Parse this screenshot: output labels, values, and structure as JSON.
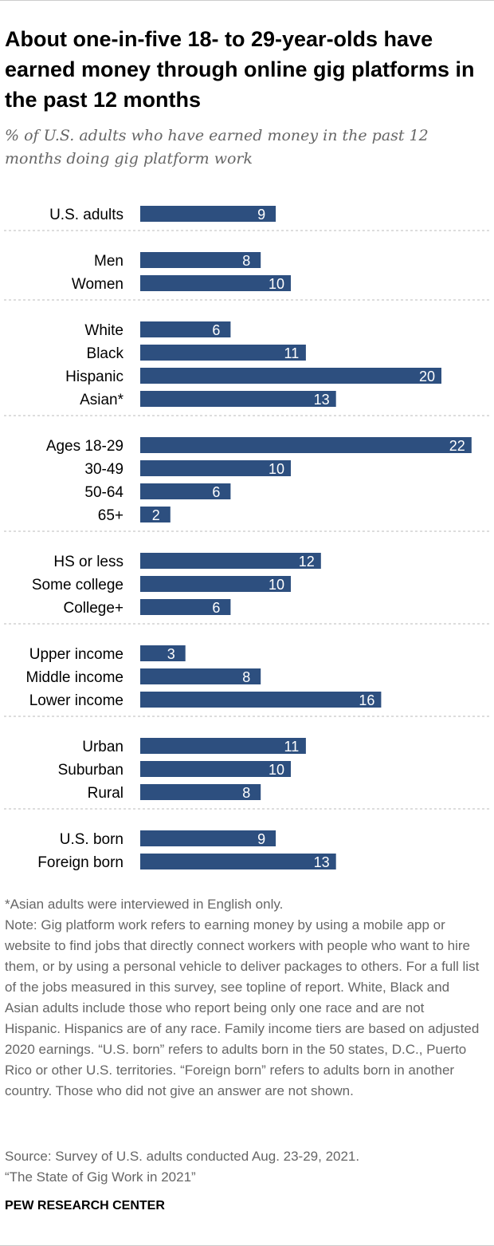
{
  "title": "About one-in-five 18- to 29-year-olds have earned money through online gig platforms in the past 12 months",
  "subtitle": "% of U.S. adults who have earned money in the past 12 months doing gig platform work",
  "colors": {
    "bar": "#2d4f7f",
    "divider": "#bbbbbb",
    "text": "#000000",
    "muted": "#666666"
  },
  "chart_data": {
    "type": "bar",
    "orientation": "horizontal",
    "title": "About one-in-five 18- to 29-year-olds have earned money through online gig platforms in the past 12 months",
    "xlabel": "% of U.S. adults who have earned money in the past 12 months doing gig platform work",
    "ylabel": "",
    "xlim": [
      0,
      22
    ],
    "grid": false,
    "groups": [
      {
        "name": "total",
        "categories": [
          "U.S. adults"
        ],
        "values": [
          9
        ]
      },
      {
        "name": "gender",
        "categories": [
          "Men",
          "Women"
        ],
        "values": [
          8,
          10
        ]
      },
      {
        "name": "race",
        "categories": [
          "White",
          "Black",
          "Hispanic",
          "Asian*"
        ],
        "values": [
          6,
          11,
          20,
          13
        ]
      },
      {
        "name": "age",
        "categories": [
          "Ages 18-29",
          "30-49",
          "50-64",
          "65+"
        ],
        "values": [
          22,
          10,
          6,
          2
        ]
      },
      {
        "name": "education",
        "categories": [
          "HS or less",
          "Some college",
          "College+"
        ],
        "values": [
          12,
          10,
          6
        ]
      },
      {
        "name": "income",
        "categories": [
          "Upper income",
          "Middle income",
          "Lower income"
        ],
        "values": [
          3,
          8,
          16
        ]
      },
      {
        "name": "community",
        "categories": [
          "Urban",
          "Suburban",
          "Rural"
        ],
        "values": [
          11,
          10,
          8
        ]
      },
      {
        "name": "nativity",
        "categories": [
          "U.S. born",
          "Foreign born"
        ],
        "values": [
          9,
          13
        ]
      }
    ]
  },
  "notes": {
    "asian": "*Asian adults were interviewed in English only.",
    "note": "Note: Gig platform work refers to earning money by using a mobile app or website to find jobs that directly connect workers with people who want to hire them, or by using a personal vehicle to deliver packages to others. For a full list of the jobs measured in this survey, see topline of report. White, Black and Asian adults include those who report being only one race and are not Hispanic. Hispanics are of any race. Family income tiers are based on adjusted 2020 earnings. “U.S. born” refers to adults born in the 50 states, D.C., Puerto Rico or other U.S. territories. “Foreign born” refers to adults born in another country. Those who did not give an answer are not shown.",
    "source": "Source: Survey of U.S. adults conducted Aug. 23-29, 2021.",
    "report": "“The State of Gig Work in 2021”"
  },
  "brand": "PEW RESEARCH CENTER"
}
